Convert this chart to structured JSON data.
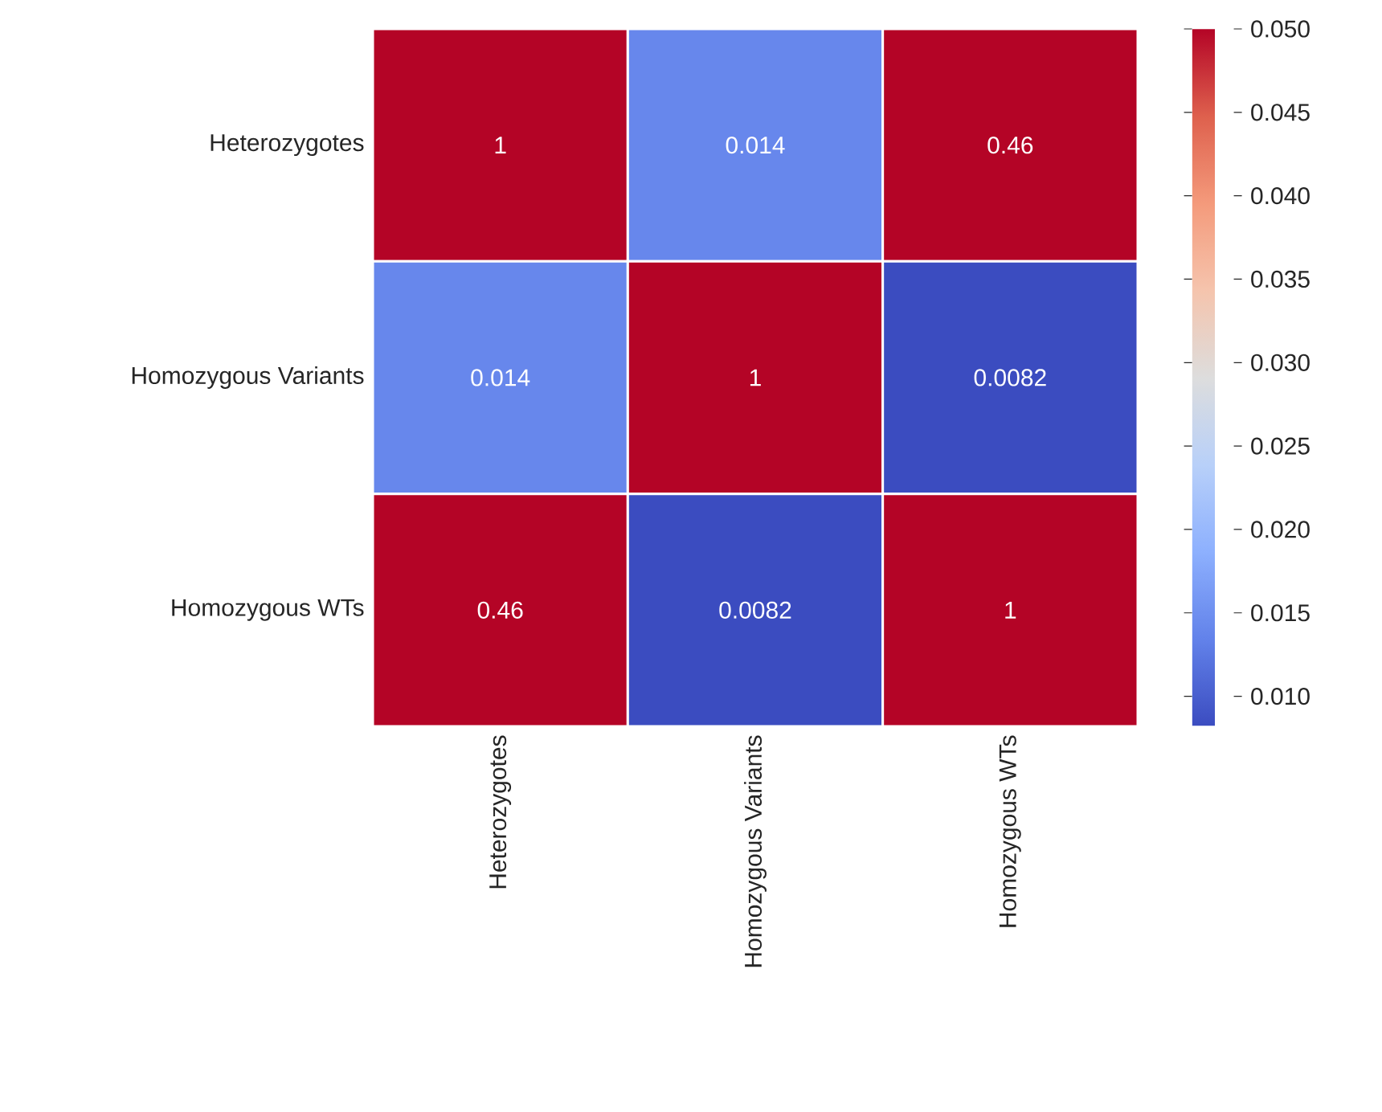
{
  "chart_data": {
    "type": "heatmap",
    "categories": [
      "Heterozygotes",
      "Homozygous Variants",
      "Homozygous WTs"
    ],
    "y_categories": [
      "Heterozygotes",
      "Homozygous Variants",
      "Homozygous WTs"
    ],
    "cells": [
      [
        1,
        0.014,
        0.46
      ],
      [
        0.014,
        1,
        0.0082
      ],
      [
        0.46,
        0.0082,
        1
      ]
    ],
    "data_labels": true,
    "clim": [
      0.0082,
      0.05
    ],
    "cticks": [
      {
        "value": 0.01,
        "label": "0.010"
      },
      {
        "value": 0.015,
        "label": "0.015"
      },
      {
        "value": 0.02,
        "label": "0.020"
      },
      {
        "value": 0.025,
        "label": "0.025"
      },
      {
        "value": 0.03,
        "label": "0.030"
      },
      {
        "value": 0.035,
        "label": "0.035"
      },
      {
        "value": 0.04,
        "label": "0.040"
      },
      {
        "value": 0.045,
        "label": "0.045"
      },
      {
        "value": 0.05,
        "label": "0.050"
      }
    ]
  }
}
